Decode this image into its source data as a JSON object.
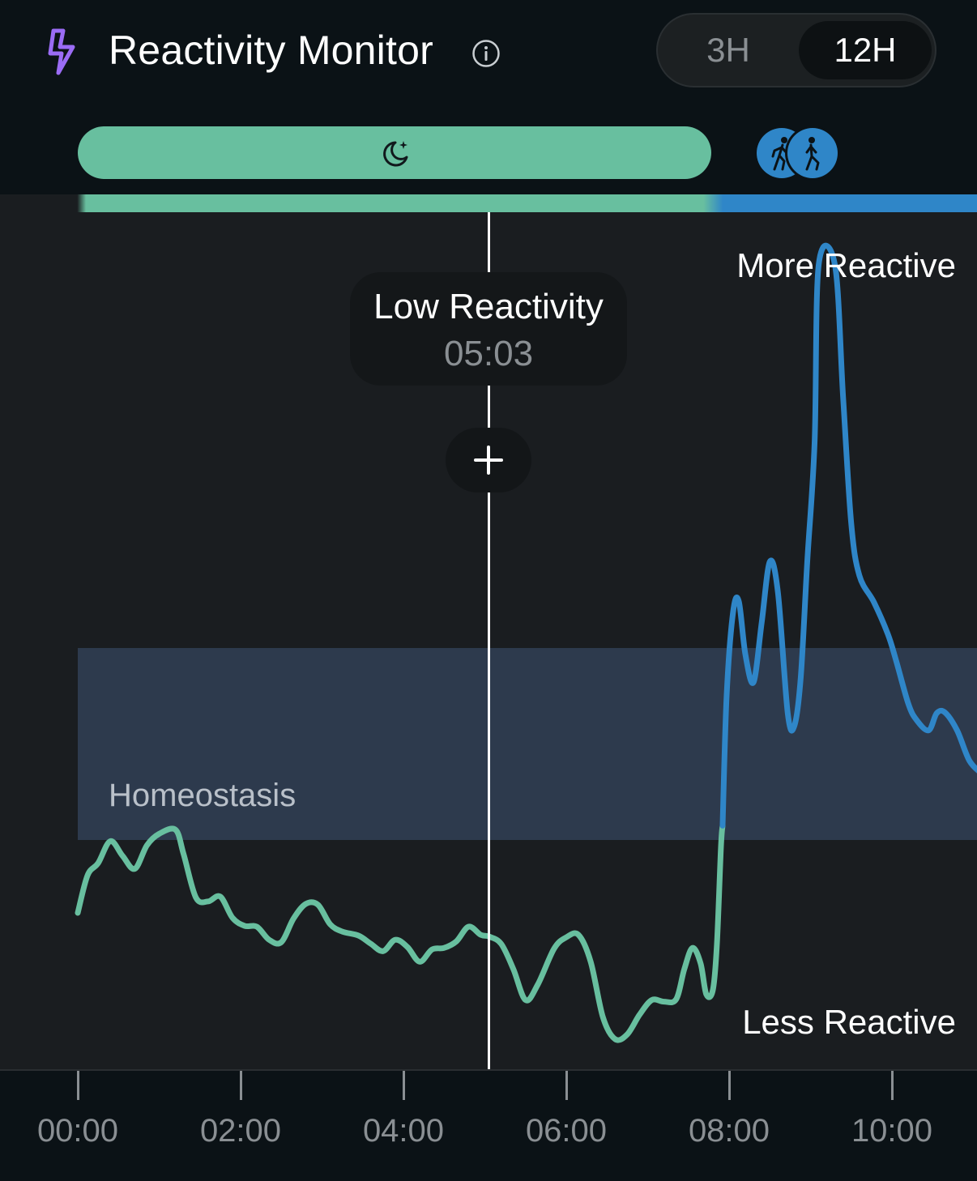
{
  "header": {
    "title": "Reactivity Monitor",
    "icons": [
      "bolt-icon",
      "info-icon"
    ],
    "range_options": [
      {
        "label": "3H",
        "selected": false
      },
      {
        "label": "12H",
        "selected": true
      }
    ]
  },
  "activity_bar": {
    "segments": [
      {
        "type": "sleep",
        "icon": "moon-icon",
        "start": "00:00",
        "end": "07:50",
        "color": "#68bf9f"
      },
      {
        "type": "walking",
        "icon": "walking-icon",
        "color": "#2f86c8"
      }
    ]
  },
  "tooltip": {
    "title": "Low Reactivity",
    "time": "05:03"
  },
  "add_button_icon": "plus-icon",
  "zones": {
    "upper_label": "More Reactive",
    "lower_label": "Less Reactive",
    "band_label": "Homeostasis"
  },
  "colors": {
    "low": "#68bf9f",
    "high": "#2f86c8",
    "band": "#2d3a4d"
  },
  "chart_data": {
    "type": "line",
    "x_unit": "hours",
    "x_ticks": [
      "00:00",
      "02:00",
      "04:00",
      "06:00",
      "08:00",
      "10:00"
    ],
    "xlim": [
      0,
      11.1
    ],
    "ylim": [
      0,
      100
    ],
    "band": {
      "label": "Homeostasis",
      "from": 28.4,
      "to": 52.9
    },
    "cursor": {
      "x": 5.05,
      "label": "Low Reactivity",
      "time": "05:03"
    },
    "series": [
      {
        "points": [
          [
            0.0,
            17.3
          ],
          [
            0.12,
            21.9
          ],
          [
            0.25,
            23.4
          ],
          [
            0.4,
            26.1
          ],
          [
            0.55,
            24.3
          ],
          [
            0.7,
            22.7
          ],
          [
            0.85,
            25.6
          ],
          [
            1.0,
            27.0
          ],
          [
            1.2,
            27.5
          ],
          [
            1.3,
            24.5
          ],
          [
            1.45,
            19.2
          ],
          [
            1.6,
            18.7
          ],
          [
            1.75,
            19.3
          ],
          [
            1.9,
            16.7
          ],
          [
            2.05,
            15.7
          ],
          [
            2.2,
            15.6
          ],
          [
            2.35,
            14.0
          ],
          [
            2.5,
            13.7
          ],
          [
            2.65,
            16.6
          ],
          [
            2.8,
            18.4
          ],
          [
            2.95,
            18.3
          ],
          [
            3.1,
            15.9
          ],
          [
            3.25,
            15.0
          ],
          [
            3.45,
            14.5
          ],
          [
            3.6,
            13.5
          ],
          [
            3.75,
            12.6
          ],
          [
            3.9,
            14.0
          ],
          [
            4.05,
            13.1
          ],
          [
            4.2,
            11.3
          ],
          [
            4.35,
            12.8
          ],
          [
            4.5,
            13.0
          ],
          [
            4.65,
            13.8
          ],
          [
            4.8,
            15.6
          ],
          [
            4.95,
            14.6
          ],
          [
            5.05,
            14.4
          ],
          [
            5.2,
            13.5
          ],
          [
            5.35,
            10.4
          ],
          [
            5.5,
            6.6
          ],
          [
            5.65,
            8.5
          ],
          [
            5.85,
            12.9
          ],
          [
            6.0,
            14.3
          ],
          [
            6.15,
            14.6
          ],
          [
            6.3,
            11.3
          ],
          [
            6.45,
            4.5
          ],
          [
            6.6,
            1.8
          ],
          [
            6.75,
            2.4
          ],
          [
            6.9,
            4.8
          ],
          [
            7.05,
            6.6
          ],
          [
            7.2,
            6.4
          ],
          [
            7.35,
            6.7
          ],
          [
            7.45,
            10.4
          ],
          [
            7.55,
            13.0
          ],
          [
            7.65,
            11.1
          ],
          [
            7.72,
            7.3
          ],
          [
            7.8,
            7.8
          ],
          [
            7.85,
            13.4
          ],
          [
            7.9,
            25.4
          ],
          [
            7.92,
            28.0
          ]
        ]
      },
      {
        "points": [
          [
            7.92,
            28.0
          ],
          [
            7.97,
            44.0
          ],
          [
            8.05,
            54.3
          ],
          [
            8.12,
            55.5
          ],
          [
            8.2,
            49.0
          ],
          [
            8.3,
            45.6
          ],
          [
            8.4,
            52.9
          ],
          [
            8.5,
            60.4
          ],
          [
            8.6,
            56.6
          ],
          [
            8.72,
            41.8
          ],
          [
            8.8,
            40.2
          ],
          [
            8.88,
            46.2
          ],
          [
            8.96,
            60.4
          ],
          [
            9.05,
            75.0
          ],
          [
            9.1,
            96.8
          ],
          [
            9.3,
            96.8
          ],
          [
            9.4,
            80.6
          ],
          [
            9.5,
            65.1
          ],
          [
            9.6,
            58.7
          ],
          [
            9.78,
            55.4
          ],
          [
            9.95,
            51.5
          ],
          [
            10.05,
            48.3
          ],
          [
            10.2,
            43.0
          ],
          [
            10.3,
            41.0
          ],
          [
            10.45,
            39.7
          ],
          [
            10.55,
            41.8
          ],
          [
            10.65,
            41.9
          ],
          [
            10.8,
            39.7
          ],
          [
            10.95,
            36.0
          ],
          [
            11.1,
            34.4
          ]
        ]
      }
    ]
  }
}
